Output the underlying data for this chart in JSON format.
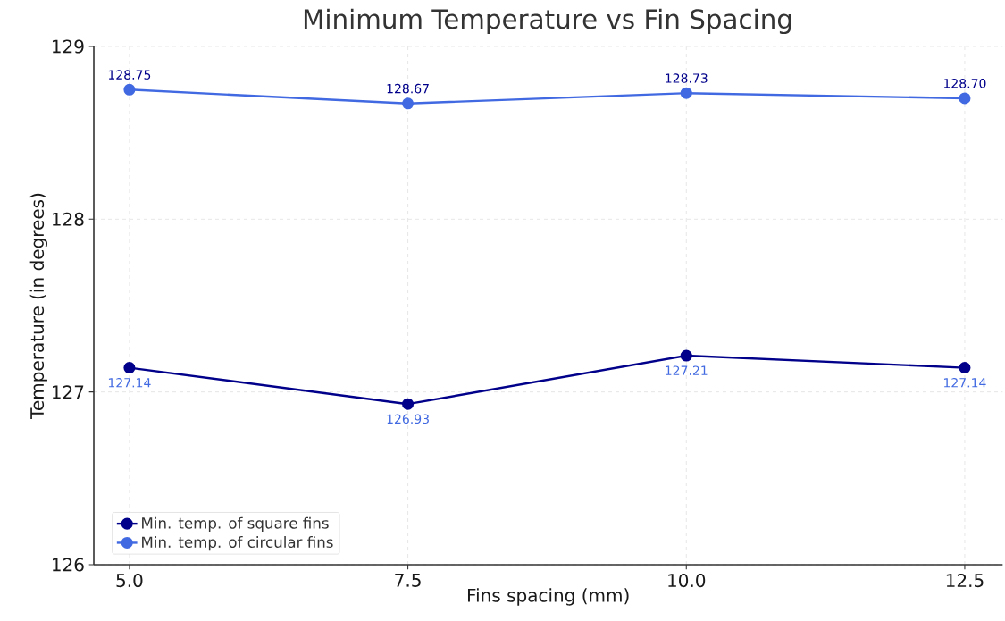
{
  "chart_data": {
    "type": "line",
    "title": "Minimum Temperature vs Fin Spacing",
    "xlabel": "Fins spacing (mm)",
    "ylabel": "Temperature (in degrees)",
    "x": [
      5.0,
      7.5,
      10.0,
      12.5
    ],
    "series": [
      {
        "name": "Min. temp. of square fins",
        "color": "#00008b",
        "values": [
          127.14,
          126.93,
          127.21,
          127.14
        ],
        "value_labels": [
          "127.14",
          "126.93",
          "127.21",
          "127.14"
        ]
      },
      {
        "name": "Min. temp. of circular fins",
        "color": "#4169e1",
        "values": [
          128.75,
          128.67,
          128.73,
          128.7
        ],
        "value_labels": [
          "128.75",
          "128.67",
          "128.73",
          "128.70"
        ]
      }
    ],
    "xlim": [
      4.68,
      12.84
    ],
    "ylim": [
      126,
      129
    ],
    "xticks": [
      {
        "value": 5.0,
        "label": "5.0"
      },
      {
        "value": 7.5,
        "label": "7.5"
      },
      {
        "value": 10.0,
        "label": "10.0"
      },
      {
        "value": 12.5,
        "label": "12.5"
      }
    ],
    "yticks": [
      126,
      127,
      128,
      129
    ],
    "grid": true,
    "legend": "bottom left",
    "marker": "circle",
    "line_style": "solid"
  }
}
